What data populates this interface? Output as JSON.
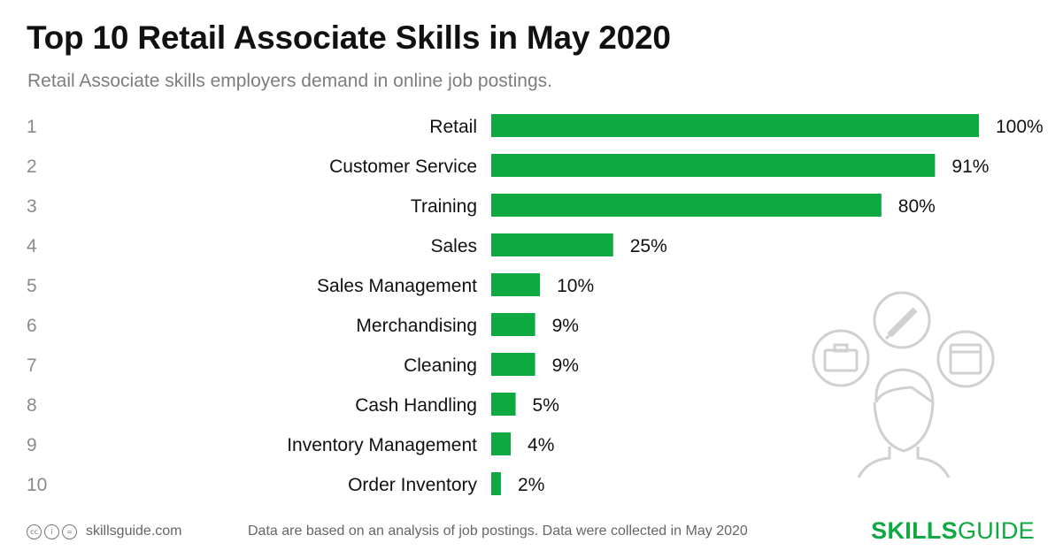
{
  "title": "Top 10 Retail Associate Skills in May 2020",
  "subtitle": "Retail Associate skills employers demand in online job postings.",
  "colors": {
    "bar": "#0ea940",
    "rank": "#8a8a8a",
    "label": "#111111",
    "illustration": "#d0d0d0"
  },
  "illustration": {
    "icons": [
      "briefcase-icon",
      "pencil-icon",
      "window-icon",
      "person-icon"
    ]
  },
  "chart_data": {
    "type": "bar",
    "orientation": "horizontal",
    "ranks": [
      "1",
      "2",
      "3",
      "4",
      "5",
      "6",
      "7",
      "8",
      "9",
      "10"
    ],
    "categories": [
      "Retail",
      "Customer Service",
      "Training",
      "Sales",
      "Sales Management",
      "Merchandising",
      "Cleaning",
      "Cash Handling",
      "Inventory Management",
      "Order Inventory"
    ],
    "values": [
      100,
      91,
      80,
      25,
      10,
      9,
      9,
      5,
      4,
      2
    ],
    "value_labels": [
      "100%",
      "91%",
      "80%",
      "25%",
      "10%",
      "9%",
      "9%",
      "5%",
      "4%",
      "2%"
    ],
    "xlim": [
      0,
      100
    ],
    "grid": false,
    "legend": "none"
  },
  "footer": {
    "license_icons": [
      "cc-icon",
      "by-icon",
      "equals-icon"
    ],
    "license_glyphs": [
      "cc",
      "i",
      "="
    ],
    "site": "skillsguide.com",
    "note": "Data are based on an analysis of job postings. Data were collected in May 2020",
    "logo_bold": "SKILLS",
    "logo_regular": "GUIDE"
  }
}
